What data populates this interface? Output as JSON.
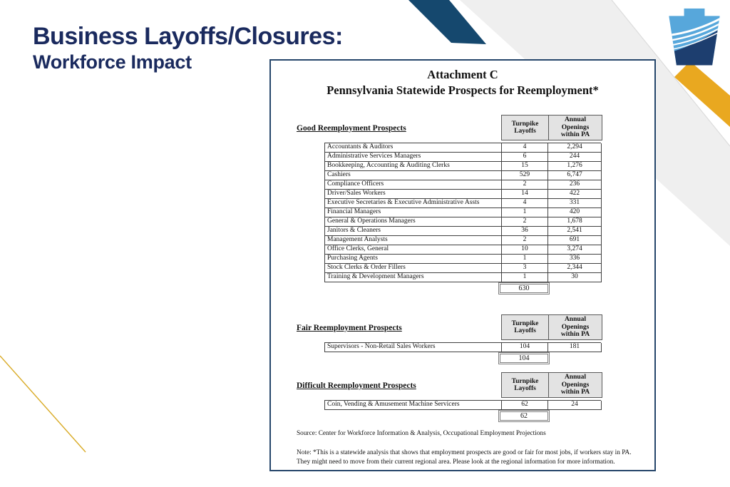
{
  "slide": {
    "title_line1": "Business Layoffs/Closures:",
    "title_line2": "Workforce Impact",
    "colors": {
      "navy": "#1a2a5e",
      "chevron": "#15486e",
      "gold": "#e9a820",
      "gold_line": "#d9ab27",
      "gray_band": "#efefef",
      "doc_border": "#26466b",
      "keystone_light_blue": "#57a7db",
      "keystone_dark_blue": "#1d3e6f"
    },
    "logo": "pennsylvania-keystone-logo"
  },
  "document": {
    "title": "Attachment C",
    "subtitle": "Pennsylvania Statewide Prospects for Reemployment*",
    "col_headers": [
      "Turnpike Layoffs",
      "Annual Openings within PA"
    ],
    "sections": [
      {
        "label": "Good Reemployment Prospects",
        "rows": [
          {
            "occupation": "Accountants & Auditors",
            "layoffs": "4",
            "openings": "2,294"
          },
          {
            "occupation": "Administrative Services Managers",
            "layoffs": "6",
            "openings": "244"
          },
          {
            "occupation": "Bookkeeping, Accounting & Auditing Clerks",
            "layoffs": "15",
            "openings": "1,276"
          },
          {
            "occupation": "Cashiers",
            "layoffs": "529",
            "openings": "6,747"
          },
          {
            "occupation": "Compliance Officers",
            "layoffs": "2",
            "openings": "236"
          },
          {
            "occupation": "Driver/Sales Workers",
            "layoffs": "14",
            "openings": "422"
          },
          {
            "occupation": "Executive Secretaries & Executive Administrative Assts",
            "layoffs": "4",
            "openings": "331"
          },
          {
            "occupation": "Financial Managers",
            "layoffs": "1",
            "openings": "420"
          },
          {
            "occupation": "General & Operations Managers",
            "layoffs": "2",
            "openings": "1,678"
          },
          {
            "occupation": "Janitors & Cleaners",
            "layoffs": "36",
            "openings": "2,541"
          },
          {
            "occupation": "Management Analysts",
            "layoffs": "2",
            "openings": "691"
          },
          {
            "occupation": "Office Clerks, General",
            "layoffs": "10",
            "openings": "3,274"
          },
          {
            "occupation": "Purchasing Agents",
            "layoffs": "1",
            "openings": "336"
          },
          {
            "occupation": "Stock Clerks & Order Fillers",
            "layoffs": "3",
            "openings": "2,344"
          },
          {
            "occupation": "Training & Development Managers",
            "layoffs": "1",
            "openings": "30"
          }
        ],
        "total": "630"
      },
      {
        "label": "Fair Reemployment Prospects",
        "rows": [
          {
            "occupation": "Supervisors - Non-Retail Sales Workers",
            "layoffs": "104",
            "openings": "181"
          }
        ],
        "total": "104"
      },
      {
        "label": "Difficult Reemployment Prospects",
        "rows": [
          {
            "occupation": "Coin, Vending & Amusement Machine Servicers",
            "layoffs": "62",
            "openings": "24"
          }
        ],
        "total": "62"
      }
    ],
    "source": "Source:  Center for Workforce Information & Analysis, Occupational Employment Projections",
    "note_line1": "Note: *This is a statewide analysis that shows that employment prospects are good or fair for most jobs, if workers stay in PA.",
    "note_line2": "They might need to move from their current regional area. Please look at the regional information for more information."
  }
}
